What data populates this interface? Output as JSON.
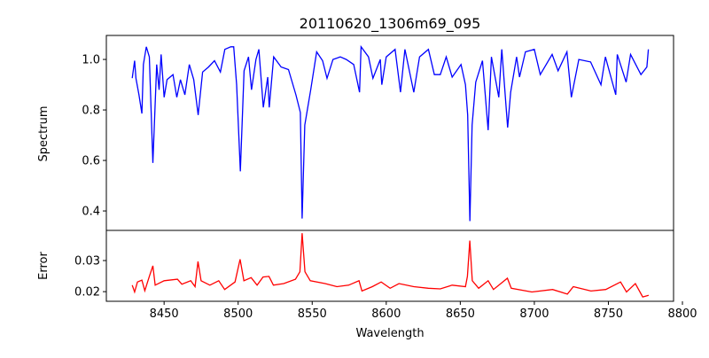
{
  "chart_data": [
    {
      "type": "line",
      "title": "20110620_1306m69_095",
      "xlabel": "",
      "ylabel": "Spectrum",
      "xlim": [
        8411,
        8794
      ],
      "ylim": [
        0.323,
        1.095
      ],
      "yticks": [
        0.4,
        0.6,
        0.8,
        1.0
      ],
      "ytick_labels": [
        "0.4",
        "0.6",
        "0.8",
        "1.0"
      ],
      "grid": false,
      "color": "#0000ff",
      "series": [
        {
          "name": "Spectrum",
          "x": [
            8428.5,
            8430.1,
            8431,
            8433,
            8435,
            8436,
            8438,
            8440,
            8442.4,
            8445,
            8446.6,
            8448,
            8450,
            8452,
            8456,
            8458.6,
            8461,
            8464,
            8467,
            8470,
            8473,
            8476,
            8480,
            8484,
            8488,
            8491,
            8495,
            8497,
            8499,
            8501.5,
            8504,
            8507,
            8509,
            8512,
            8514,
            8517,
            8520,
            8521,
            8524,
            8529,
            8534,
            8539,
            8542,
            8543.2,
            8545,
            8549,
            8553,
            8557,
            8560,
            8564,
            8569,
            8573,
            8578,
            8582,
            8583,
            8588,
            8591,
            8596,
            8597,
            8600,
            8606,
            8609.6,
            8612.6,
            8618.6,
            8622.5,
            8628.5,
            8632.5,
            8636.5,
            8640.5,
            8644.5,
            8650.5,
            8653.5,
            8655,
            8656.5,
            8658,
            8660.4,
            8665,
            8668.8,
            8671,
            8676,
            8678,
            8682,
            8684,
            8688,
            8690,
            8694,
            8700,
            8704,
            8712,
            8716,
            8722,
            8725,
            8730,
            8738,
            8745,
            8748,
            8755,
            8756,
            8762,
            8765,
            8772,
            8776,
            8777
          ],
          "y": [
            0.926,
            0.995,
            0.925,
            0.86,
            0.786,
            0.98,
            1.05,
            1.01,
            0.59,
            0.98,
            0.88,
            1.02,
            0.85,
            0.92,
            0.94,
            0.85,
            0.92,
            0.86,
            0.98,
            0.92,
            0.78,
            0.95,
            0.97,
            0.995,
            0.95,
            1.04,
            1.05,
            1.05,
            0.9,
            0.557,
            0.955,
            1.01,
            0.88,
            1.0,
            1.04,
            0.81,
            0.93,
            0.81,
            1.01,
            0.97,
            0.96,
            0.86,
            0.79,
            0.37,
            0.74,
            0.88,
            1.03,
            0.995,
            0.925,
            1.0,
            1.01,
            1.0,
            0.98,
            0.87,
            1.05,
            1.01,
            0.925,
            1.0,
            0.9,
            1.01,
            1.04,
            0.87,
            1.04,
            0.87,
            1.01,
            1.04,
            0.94,
            0.94,
            1.01,
            0.93,
            0.98,
            0.9,
            0.78,
            0.36,
            0.74,
            0.91,
            0.995,
            0.72,
            1.01,
            0.85,
            1.04,
            0.73,
            0.87,
            1.01,
            0.93,
            1.03,
            1.04,
            0.94,
            1.02,
            0.955,
            1.03,
            0.85,
            1.0,
            0.99,
            0.9,
            1.01,
            0.86,
            1.02,
            0.91,
            1.02,
            0.94,
            0.97,
            1.04
          ]
        }
      ]
    },
    {
      "type": "line",
      "title": "",
      "xlabel": "Wavelength",
      "ylabel": "Error",
      "xlim": [
        8411,
        8794
      ],
      "ylim": [
        0.0169,
        0.0397
      ],
      "xticks": [
        8450,
        8500,
        8550,
        8600,
        8650,
        8700,
        8750,
        8800
      ],
      "xtick_labels": [
        "8450",
        "8500",
        "8550",
        "8600",
        "8650",
        "8700",
        "8750",
        "8800"
      ],
      "yticks": [
        0.02,
        0.03
      ],
      "ytick_labels": [
        "0.02",
        "0.03"
      ],
      "grid": false,
      "color": "#ff0000",
      "series": [
        {
          "name": "Error",
          "x": [
            8428.5,
            8430.1,
            8432,
            8435,
            8437,
            8440,
            8442.4,
            8444,
            8450,
            8459,
            8462,
            8468,
            8470.9,
            8472.9,
            8475,
            8480.9,
            8486.9,
            8490.9,
            8497.9,
            8501.3,
            8503.9,
            8508.8,
            8512.8,
            8516.8,
            8520.8,
            8523.8,
            8530.8,
            8538.7,
            8541.7,
            8543.2,
            8545.1,
            8548.7,
            8558.7,
            8566.7,
            8574.6,
            8581.6,
            8583.6,
            8590.6,
            8596.6,
            8602.6,
            8608.6,
            8618.6,
            8628.5,
            8636.5,
            8644.5,
            8653.5,
            8654.8,
            8656.4,
            8658.1,
            8662.4,
            8668.8,
            8672.4,
            8681.8,
            8684.4,
            8698.3,
            8712.3,
            8722.3,
            8726.3,
            8738.2,
            8748.2,
            8758.2,
            8762.2,
            8768.2,
            8773.2,
            8777.2
          ],
          "y": [
            0.0221,
            0.0199,
            0.0231,
            0.0237,
            0.0203,
            0.0249,
            0.0283,
            0.0221,
            0.0235,
            0.024,
            0.0224,
            0.0235,
            0.0216,
            0.0297,
            0.0235,
            0.0221,
            0.0235,
            0.0207,
            0.0231,
            0.0304,
            0.0235,
            0.0245,
            0.0221,
            0.0247,
            0.0249,
            0.0221,
            0.0226,
            0.024,
            0.0264,
            0.0388,
            0.0264,
            0.0235,
            0.0226,
            0.0216,
            0.0221,
            0.0235,
            0.0202,
            0.0216,
            0.0231,
            0.0211,
            0.0226,
            0.0216,
            0.0211,
            0.0209,
            0.0221,
            0.0216,
            0.0249,
            0.0364,
            0.0235,
            0.0211,
            0.0235,
            0.0207,
            0.0243,
            0.0211,
            0.0199,
            0.0207,
            0.0192,
            0.0216,
            0.0202,
            0.0207,
            0.0231,
            0.0199,
            0.0226,
            0.0183,
            0.0188
          ]
        }
      ]
    }
  ]
}
